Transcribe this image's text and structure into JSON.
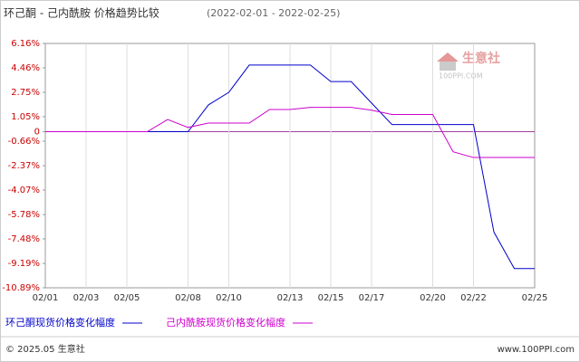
{
  "chart_data": {
    "type": "line",
    "title": "环己酮 - 己内酰胺 价格趋势比较",
    "subtitle": "(2022-02-01 - 2022-02-25)",
    "categories": [
      "02/01",
      null,
      "02/03",
      null,
      "02/05",
      null,
      null,
      "02/08",
      null,
      "02/10",
      null,
      null,
      "02/13",
      null,
      "02/15",
      null,
      "02/17",
      null,
      null,
      "02/20",
      null,
      "02/22",
      null,
      null,
      "02/25"
    ],
    "series": [
      {
        "name": "环己酮现货价格变化幅度",
        "color": "#0000cc",
        "values": [
          0,
          0,
          0,
          0,
          0,
          0,
          0,
          0,
          1.87,
          2.75,
          4.65,
          4.65,
          4.65,
          4.65,
          3.5,
          3.5,
          2.0,
          0.5,
          0.5,
          0.5,
          0.5,
          0.5,
          -7.0,
          -9.55,
          -9.55
        ]
      },
      {
        "name": "己内酰胺现货价格变化幅度",
        "color": "#cc00cc",
        "values": [
          0,
          0,
          0,
          0,
          0,
          0,
          0.85,
          0.3,
          0.6,
          0.6,
          0.6,
          1.55,
          1.55,
          1.7,
          1.7,
          1.7,
          1.5,
          1.2,
          1.2,
          1.2,
          -1.4,
          -1.8,
          -1.8,
          -1.8,
          -1.8
        ]
      }
    ],
    "ylim": [
      -10.89,
      6.16
    ],
    "yticks": [
      {
        "value": 6.16,
        "label": "6.16%"
      },
      {
        "value": 4.46,
        "label": "4.46%"
      },
      {
        "value": 2.75,
        "label": "2.75%"
      },
      {
        "value": 1.05,
        "label": "1.05%"
      },
      0,
      {
        "value": -0.66,
        "label": "-0.66%"
      },
      {
        "value": -2.37,
        "label": "-2.37%"
      },
      {
        "value": -4.07,
        "label": "-4.07%"
      },
      {
        "value": -5.78,
        "label": "-5.78%"
      },
      {
        "value": -7.48,
        "label": "-7.48%"
      },
      {
        "value": -9.19,
        "label": "-9.19%"
      },
      {
        "value": -10.89,
        "label": "-10.89%"
      }
    ],
    "grid": true,
    "watermark": {
      "name": "生意社",
      "site": "100PPI.COM"
    },
    "footer": {
      "copyright": "© 2025.05 生意社",
      "url": "www.100PPI.com"
    }
  }
}
